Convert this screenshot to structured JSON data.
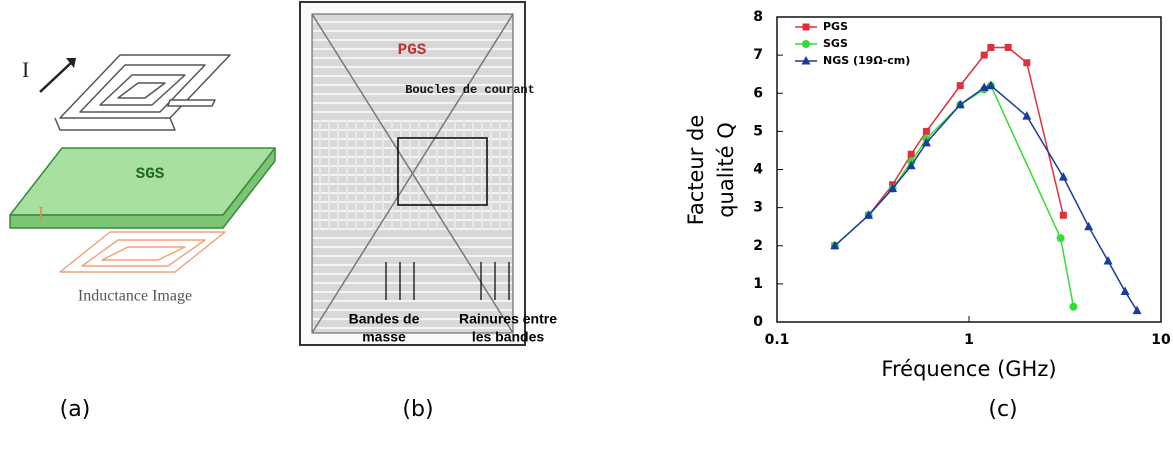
{
  "panels": {
    "a": {
      "current": "I",
      "shield": "SGS",
      "current_image": "I",
      "caption": "Inductance Image",
      "label": "(a)"
    },
    "b": {
      "shield": "PGS",
      "loops": "Boucles de courant",
      "bands": [
        "Bandes de",
        "masse"
      ],
      "grooves": [
        "Rainures entre",
        "les bandes"
      ],
      "label": "(b)"
    },
    "c": {
      "label": "(c)"
    }
  },
  "chart_data": {
    "type": "line",
    "x_label": "Fréquence (GHz)",
    "y_label": [
      "Facteur de",
      "qualité Q"
    ],
    "xlim": [
      0.1,
      10
    ],
    "xticks": [
      0.1,
      1,
      10
    ],
    "xscale": "log",
    "ylim": [
      0,
      8
    ],
    "yticks": [
      0,
      1,
      2,
      3,
      4,
      5,
      6,
      7,
      8
    ],
    "legend": "upper left",
    "series": [
      {
        "name": "PGS",
        "color": "#e0303a",
        "marker": "square",
        "x": [
          0.2,
          0.3,
          0.4,
          0.5,
          0.6,
          0.9,
          1.2,
          1.3,
          1.6,
          2.0,
          3.1
        ],
        "values": [
          2,
          2.8,
          3.6,
          4.4,
          5.0,
          6.2,
          7.0,
          7.2,
          7.2,
          6.8,
          2.8
        ]
      },
      {
        "name": "SGS",
        "color": "#33dd33",
        "marker": "circle",
        "x": [
          0.2,
          0.3,
          0.4,
          0.5,
          0.6,
          0.9,
          1.2,
          1.3,
          3.0,
          3.5
        ],
        "values": [
          2,
          2.8,
          3.5,
          4.2,
          4.8,
          5.7,
          6.1,
          6.2,
          2.2,
          0.4
        ]
      },
      {
        "name": "NGS (19Ω-cm)",
        "color": "#1a3aa0",
        "marker": "triangle",
        "x": [
          0.2,
          0.3,
          0.4,
          0.5,
          0.6,
          0.9,
          1.2,
          1.3,
          2.0,
          3.1,
          4.2,
          5.3,
          6.5,
          7.5
        ],
        "values": [
          2,
          2.8,
          3.5,
          4.1,
          4.7,
          5.7,
          6.15,
          6.2,
          5.4,
          3.8,
          2.5,
          1.6,
          0.8,
          0.3
        ]
      }
    ]
  }
}
